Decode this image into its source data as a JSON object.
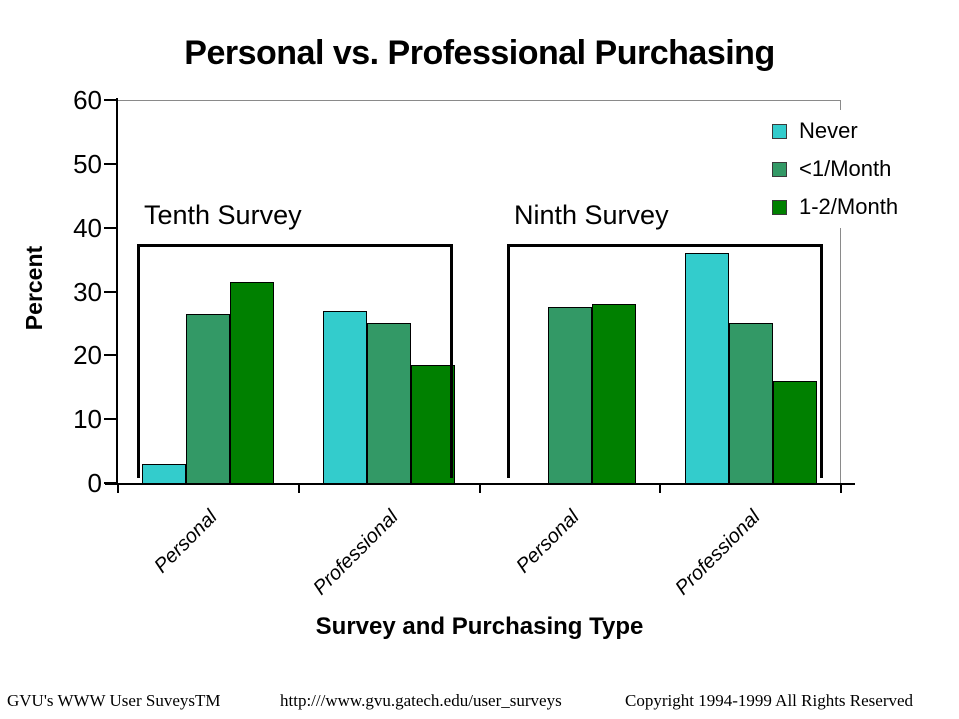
{
  "title": "Personal vs. Professional Purchasing",
  "chart_data": {
    "type": "bar",
    "title": "Personal vs. Professional Purchasing",
    "xlabel": "Survey and Purchasing Type",
    "ylabel": "Percent",
    "ylim": [
      0,
      60
    ],
    "y_ticks": [
      0,
      10,
      20,
      30,
      40,
      50,
      60
    ],
    "grid": false,
    "legend_position": "top-right",
    "categories": [
      "Personal",
      "Professional",
      "Personal",
      "Professional"
    ],
    "group_annotations": [
      {
        "label": "Tenth Survey",
        "category_indexes": [
          0,
          1
        ]
      },
      {
        "label": "Ninth Survey",
        "category_indexes": [
          2,
          3
        ]
      }
    ],
    "series": [
      {
        "name": "Never",
        "color": "#33CCCC",
        "values": [
          3,
          27,
          0,
          36
        ]
      },
      {
        "name": "<1/Month",
        "color": "#339966",
        "values": [
          26.5,
          25,
          27.5,
          25
        ]
      },
      {
        "name": "1-2/Month",
        "color": "#008000",
        "values": [
          31.5,
          18.5,
          28,
          16
        ]
      }
    ]
  },
  "footer": {
    "left": "GVU's WWW User SuveysTM",
    "center": "http:///www.gvu.gatech.edu/user_surveys",
    "right": "Copyright 1994-1999 All Rights Reserved"
  }
}
